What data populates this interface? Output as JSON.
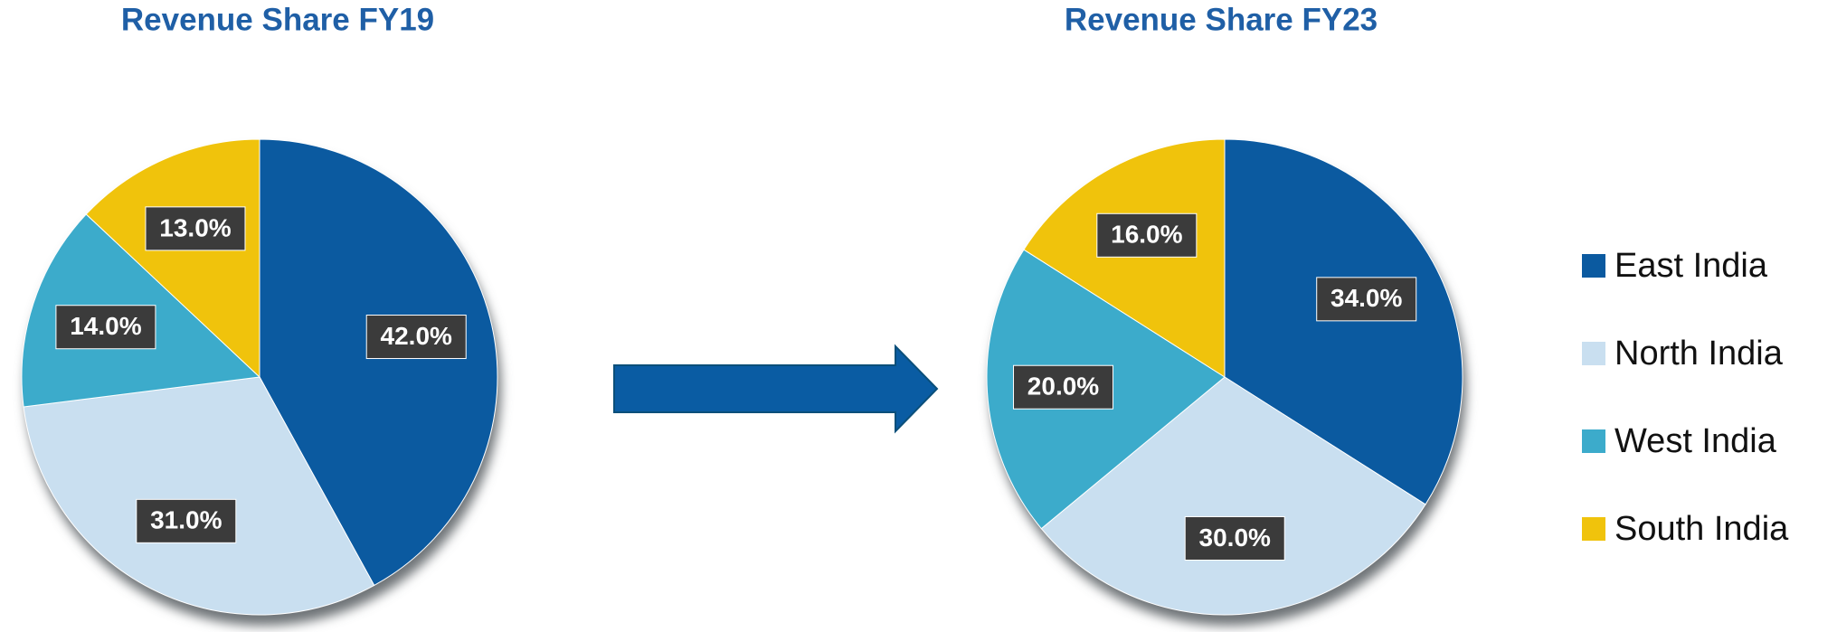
{
  "legend": {
    "categories": [
      "East India",
      "North India",
      "West India",
      "South India"
    ],
    "colors": [
      "#0b5aa0",
      "#c9dff0",
      "#3cabcb",
      "#f0c30c"
    ]
  },
  "chart_data": [
    {
      "type": "pie",
      "title": "Revenue Share FY19",
      "values": [
        42,
        31,
        14,
        13
      ],
      "value_labels": [
        "42.0%",
        "31.0%",
        "14.0%",
        "13.0%"
      ]
    },
    {
      "type": "pie",
      "title": "Revenue Share FY23",
      "values": [
        34,
        30,
        20,
        16
      ],
      "value_labels": [
        "34.0%",
        "30.0%",
        "20.0%",
        "16.0%"
      ]
    }
  ]
}
